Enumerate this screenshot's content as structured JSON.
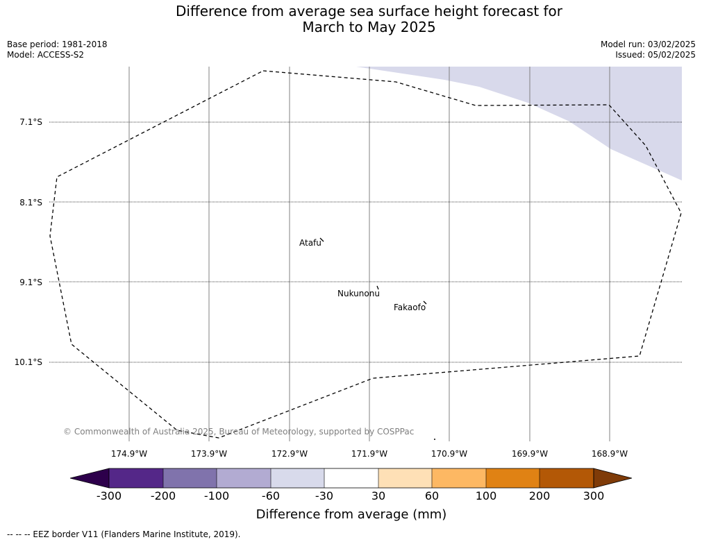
{
  "title_line1": "Difference from average sea surface height forecast for",
  "title_line2": "March to May 2025",
  "base_period": "Base period: 1981-2018",
  "model": "Model: ACCESS-S2",
  "model_run": "Model run: 03/02/2025",
  "issued": "Issued: 05/02/2025",
  "map": {
    "lat_labels": [
      "7.1°S",
      "8.1°S",
      "9.1°S",
      "10.1°S"
    ],
    "lon_labels": [
      "174.9°W",
      "173.9°W",
      "172.9°W",
      "171.9°W",
      "170.9°W",
      "169.9°W",
      "168.9°W"
    ],
    "places": [
      "Atafu",
      "Nukunonu",
      "Fakaofo"
    ],
    "copyright": "© Commonwealth of Australia 2025, Bureau of Meteorology, supported by COSPPac",
    "anomaly_fill_color": "#d8d9eb"
  },
  "colorbar": {
    "ticks": [
      "-300",
      "-200",
      "-100",
      "-60",
      "-30",
      "30",
      "60",
      "100",
      "200",
      "300"
    ],
    "colors": [
      "#2d004b",
      "#542788",
      "#8073ac",
      "#b2abd2",
      "#d8daeb",
      "#ffffff",
      "#fee0b6",
      "#fdb863",
      "#e08214",
      "#b35806",
      "#7f3b08"
    ],
    "label": "Difference from average (mm)"
  },
  "footnote": "--  --  -- EEZ border V11 (Flanders Marine Institute, 2019)."
}
